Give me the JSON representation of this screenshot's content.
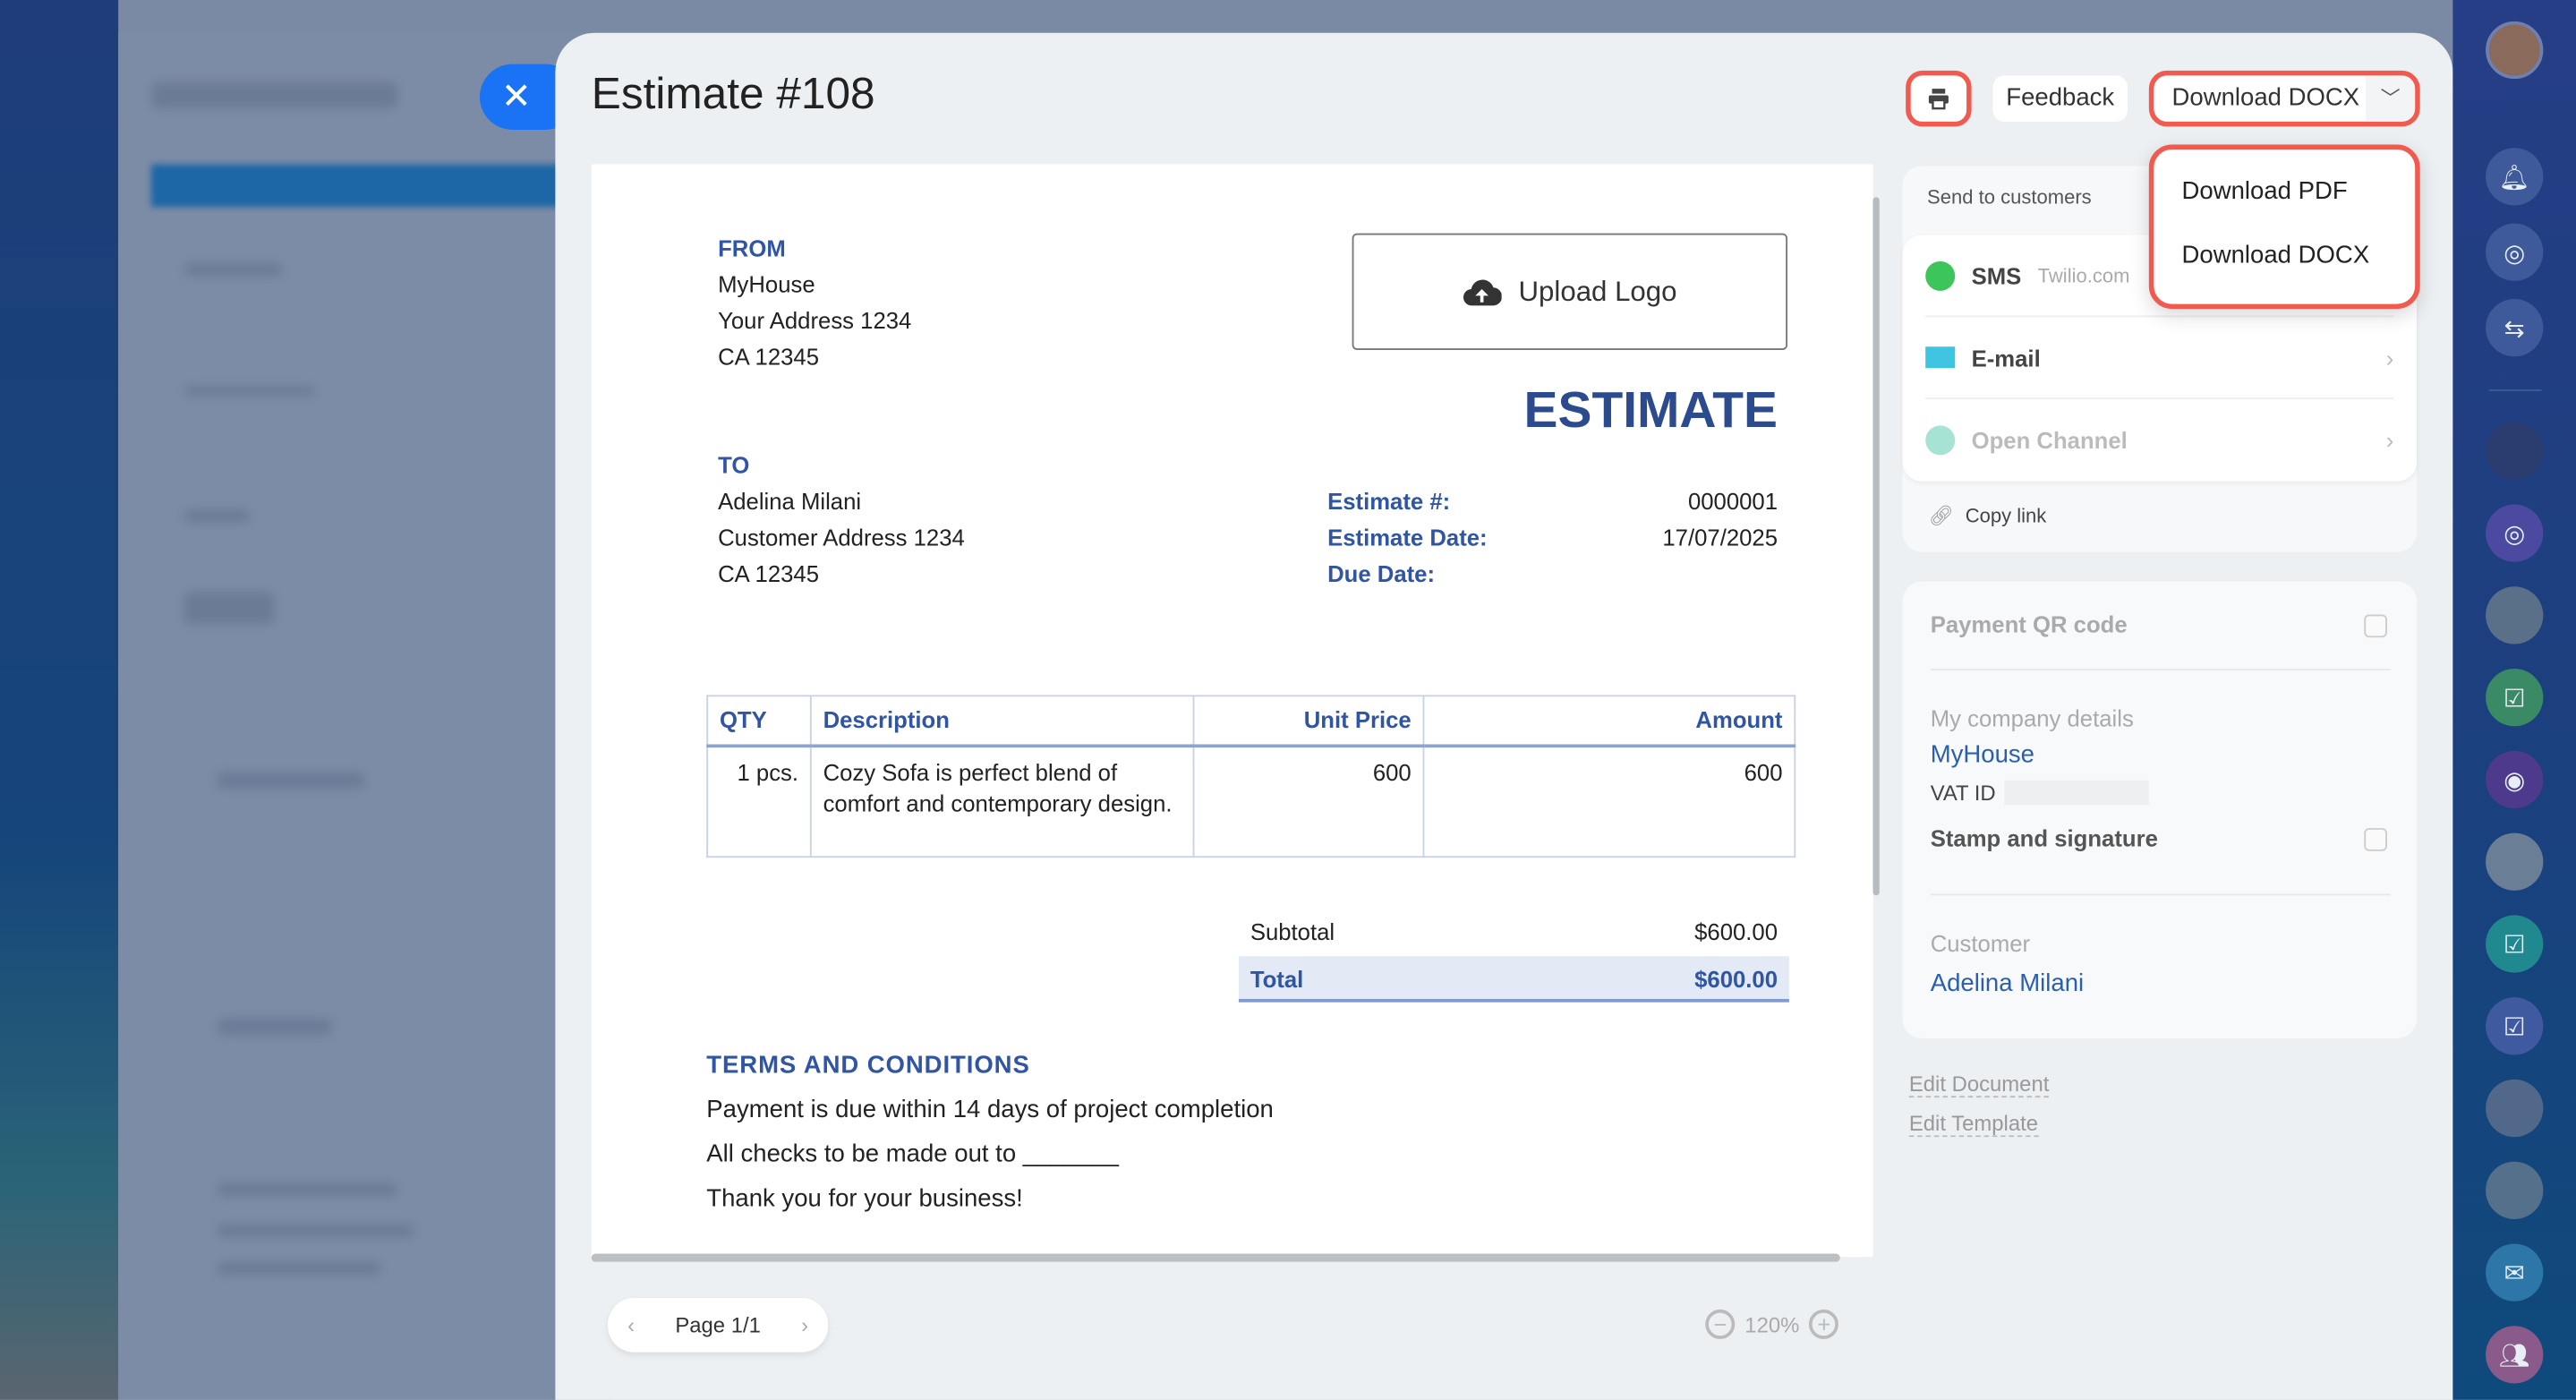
{
  "modal": {
    "title": "Estimate #108",
    "close_icon": "close-icon"
  },
  "toolbar": {
    "print_icon": "printer-icon",
    "feedback_label": "Feedback",
    "download_label": "Download DOCX"
  },
  "download_menu": {
    "items": [
      "Download PDF",
      "Download DOCX"
    ]
  },
  "document": {
    "from_label": "FROM",
    "from_lines": [
      "MyHouse",
      "Your Address 1234",
      "CA 12345"
    ],
    "upload_logo_label": "Upload Logo",
    "heading": "ESTIMATE",
    "to_label": "TO",
    "to_lines": [
      "Adelina Milani",
      "Customer Address 1234",
      "CA 12345"
    ],
    "fields": [
      {
        "label": "Estimate #:",
        "value": "0000001"
      },
      {
        "label": "Estimate Date:",
        "value": "17/07/2025"
      },
      {
        "label": "Due Date:",
        "value": ""
      }
    ],
    "table": {
      "headers": [
        "QTY",
        "Description",
        "Unit Price",
        "Amount"
      ],
      "rows": [
        {
          "qty": "1 pcs.",
          "description": "Cozy Sofa is perfect blend of comfort and contemporary design.",
          "unit_price": "600",
          "amount": "600"
        }
      ]
    },
    "subtotal_label": "Subtotal",
    "subtotal_value": "$600.00",
    "total_label": "Total",
    "total_value": "$600.00",
    "terms_heading": "TERMS AND CONDITIONS",
    "terms_lines": [
      "Payment is due within 14 days of project completion",
      "All checks to be made out to _______",
      "Thank you for your business!"
    ]
  },
  "pager": {
    "label": "Page 1/1"
  },
  "zoom": {
    "level": "120%"
  },
  "send_panel": {
    "title": "Send to customers",
    "channels": [
      {
        "label": "SMS",
        "sub": "Twilio.com",
        "icon": "whatsapp-icon"
      },
      {
        "label": "E-mail",
        "sub": "",
        "icon": "mail-icon"
      },
      {
        "label": "Open Channel",
        "sub": "",
        "icon": "open-channel-icon"
      }
    ],
    "copy_link": "Copy link"
  },
  "settings_panel": {
    "payment_qr": "Payment QR code",
    "company_label": "My company details",
    "company_name": "MyHouse",
    "vat_label": "VAT ID",
    "stamp_label": "Stamp and signature",
    "customer_label": "Customer",
    "customer_name": "Adelina Milani"
  },
  "links": {
    "edit_document": "Edit Document",
    "edit_template": "Edit Template"
  },
  "colors": {
    "accent": "#1a73f5",
    "highlight": "#f05a4f",
    "doc_blue": "#2f55a4"
  }
}
